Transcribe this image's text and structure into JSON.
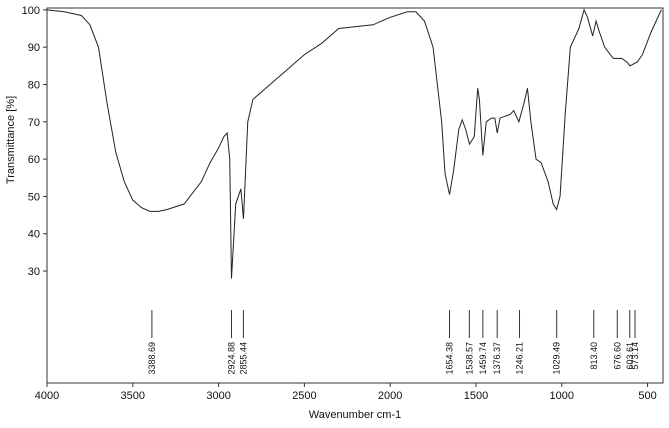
{
  "chart_data": {
    "type": "line",
    "xlabel": "Wavenumber cm-1",
    "ylabel": "Transmittance [%]",
    "xlim": [
      4000,
      410
    ],
    "ylim": [
      0,
      100.5
    ],
    "xticks": [
      4000,
      3500,
      3000,
      2500,
      2000,
      1500,
      1000,
      500
    ],
    "yticks": [
      30,
      40,
      50,
      60,
      70,
      80,
      90,
      100
    ],
    "color": "#222222",
    "x": [
      4000,
      3900,
      3800,
      3750,
      3700,
      3650,
      3600,
      3550,
      3500,
      3450,
      3400,
      3350,
      3300,
      3200,
      3100,
      3050,
      3000,
      2970,
      2950,
      2935,
      2924.88,
      2900,
      2870,
      2855,
      2830,
      2800,
      2700,
      2600,
      2500,
      2400,
      2350,
      2300,
      2200,
      2100,
      2000,
      1900,
      1850,
      1800,
      1750,
      1700,
      1680,
      1654,
      1630,
      1600,
      1580,
      1560,
      1538,
      1510,
      1490,
      1480,
      1460,
      1440,
      1410,
      1390,
      1376,
      1360,
      1300,
      1280,
      1250,
      1220,
      1200,
      1180,
      1150,
      1120,
      1080,
      1050,
      1030,
      1010,
      980,
      950,
      900,
      870,
      850,
      820,
      800,
      780,
      750,
      700,
      650,
      620,
      603,
      560,
      530,
      480,
      420
    ],
    "values": [
      100,
      99.5,
      98.5,
      96,
      90,
      75,
      62,
      54,
      49,
      47,
      46,
      46,
      46.5,
      48,
      54,
      59,
      63,
      66,
      67,
      60,
      28,
      48,
      52,
      44,
      70,
      76,
      80,
      84,
      88,
      91,
      93,
      95,
      95.5,
      96,
      98,
      99.5,
      99.5,
      97,
      90,
      70,
      56,
      50.5,
      57,
      68,
      70.5,
      68,
      64,
      66,
      79,
      76,
      61,
      70,
      71,
      71,
      67,
      71,
      72,
      73,
      70,
      75,
      79,
      70,
      60,
      59,
      54,
      48,
      46.5,
      50,
      72,
      90,
      95,
      100,
      98,
      93,
      97,
      94,
      90,
      87,
      87,
      86,
      85,
      86,
      88,
      94,
      100
    ],
    "annotations": [
      {
        "x": 3388.69,
        "label": "3388.69"
      },
      {
        "x": 2924.88,
        "label": "2924.88"
      },
      {
        "x": 2855.44,
        "label": "2855.44"
      },
      {
        "x": 1654.38,
        "label": "1654.38"
      },
      {
        "x": 1538.57,
        "label": "1538.57"
      },
      {
        "x": 1459.74,
        "label": "1459.74"
      },
      {
        "x": 1376.37,
        "label": "1376.37"
      },
      {
        "x": 1246.21,
        "label": "1246.21"
      },
      {
        "x": 1029.49,
        "label": "1029.49"
      },
      {
        "x": 813.4,
        "label": "813.40"
      },
      {
        "x": 676.6,
        "label": "676.60"
      },
      {
        "x": 603.61,
        "label": "603.61"
      },
      {
        "x": 573.14,
        "label": "573.14"
      }
    ]
  }
}
